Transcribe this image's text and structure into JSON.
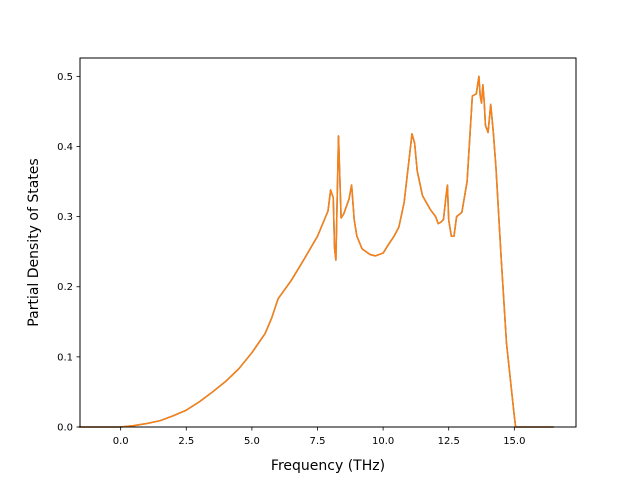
{
  "chart_data": {
    "type": "line",
    "title": "",
    "xlabel": "Frequency (THz)",
    "ylabel": "Partial Density of States",
    "xlim": [
      -1.55,
      17.35
    ],
    "ylim": [
      0.0,
      0.5262
    ],
    "x_ticks": [
      0.0,
      2.5,
      5.0,
      7.5,
      10.0,
      12.5,
      15.0
    ],
    "x_tick_labels": [
      "0.0",
      "2.5",
      "5.0",
      "7.5",
      "10.0",
      "12.5",
      "15.0"
    ],
    "y_ticks": [
      0.0,
      0.1,
      0.2,
      0.3,
      0.4,
      0.5
    ],
    "y_tick_labels": [
      "0.0",
      "0.1",
      "0.2",
      "0.3",
      "0.4",
      "0.5"
    ],
    "grid": false,
    "legend": "none",
    "series": [
      {
        "color": "#1f77b4",
        "x": [
          -1.6,
          0.0,
          0.5,
          1.0,
          1.5,
          2.0,
          2.5,
          3.0,
          3.5,
          4.0,
          4.5,
          5.0,
          5.5,
          5.75,
          6.0,
          6.5,
          7.0,
          7.5,
          7.9,
          8.0,
          8.1,
          8.15,
          8.2,
          8.3,
          8.4,
          8.5,
          8.7,
          8.8,
          8.9,
          9.0,
          9.2,
          9.5,
          9.7,
          10.0,
          10.2,
          10.4,
          10.6,
          10.8,
          11.0,
          11.1,
          11.2,
          11.3,
          11.5,
          11.8,
          12.0,
          12.1,
          12.2,
          12.3,
          12.4,
          12.45,
          12.5,
          12.6,
          12.7,
          12.8,
          13.0,
          13.2,
          13.4,
          13.55,
          13.65,
          13.7,
          13.75,
          13.8,
          13.85,
          13.9,
          14.0,
          14.1,
          14.2,
          14.3,
          14.5,
          14.7,
          15.0,
          15.05,
          15.1,
          16.5
        ],
        "y": [
          0.0,
          0.0,
          0.002,
          0.005,
          0.009,
          0.016,
          0.024,
          0.036,
          0.05,
          0.065,
          0.083,
          0.106,
          0.133,
          0.155,
          0.183,
          0.209,
          0.24,
          0.272,
          0.308,
          0.338,
          0.327,
          0.255,
          0.238,
          0.415,
          0.298,
          0.304,
          0.325,
          0.345,
          0.295,
          0.272,
          0.254,
          0.246,
          0.244,
          0.248,
          0.26,
          0.271,
          0.285,
          0.32,
          0.385,
          0.418,
          0.405,
          0.365,
          0.33,
          0.31,
          0.3,
          0.29,
          0.292,
          0.296,
          0.33,
          0.345,
          0.295,
          0.272,
          0.272,
          0.3,
          0.306,
          0.35,
          0.472,
          0.475,
          0.5,
          0.472,
          0.462,
          0.488,
          0.465,
          0.43,
          0.42,
          0.46,
          0.42,
          0.37,
          0.24,
          0.12,
          0.015,
          0.0,
          0.0,
          0.0
        ]
      },
      {
        "color": "#ff7f0e",
        "x": [
          -1.6,
          0.0,
          0.5,
          1.0,
          1.5,
          2.0,
          2.5,
          3.0,
          3.5,
          4.0,
          4.5,
          5.0,
          5.5,
          5.75,
          6.0,
          6.5,
          7.0,
          7.5,
          7.9,
          8.0,
          8.1,
          8.15,
          8.2,
          8.3,
          8.4,
          8.5,
          8.7,
          8.8,
          8.9,
          9.0,
          9.2,
          9.5,
          9.7,
          10.0,
          10.2,
          10.4,
          10.6,
          10.8,
          11.0,
          11.1,
          11.2,
          11.3,
          11.5,
          11.8,
          12.0,
          12.1,
          12.2,
          12.3,
          12.4,
          12.45,
          12.5,
          12.6,
          12.7,
          12.8,
          13.0,
          13.2,
          13.4,
          13.55,
          13.65,
          13.7,
          13.75,
          13.8,
          13.85,
          13.9,
          14.0,
          14.1,
          14.2,
          14.3,
          14.5,
          14.7,
          15.0,
          15.05,
          15.1,
          16.5
        ],
        "y": [
          0.0,
          0.0,
          0.002,
          0.005,
          0.009,
          0.016,
          0.024,
          0.036,
          0.05,
          0.065,
          0.083,
          0.106,
          0.133,
          0.155,
          0.183,
          0.209,
          0.24,
          0.272,
          0.308,
          0.338,
          0.327,
          0.255,
          0.238,
          0.415,
          0.298,
          0.304,
          0.325,
          0.345,
          0.295,
          0.272,
          0.254,
          0.246,
          0.244,
          0.248,
          0.26,
          0.271,
          0.285,
          0.32,
          0.385,
          0.418,
          0.405,
          0.365,
          0.33,
          0.31,
          0.3,
          0.29,
          0.292,
          0.296,
          0.33,
          0.345,
          0.295,
          0.272,
          0.272,
          0.3,
          0.306,
          0.35,
          0.472,
          0.475,
          0.5,
          0.472,
          0.462,
          0.488,
          0.465,
          0.43,
          0.42,
          0.46,
          0.42,
          0.37,
          0.24,
          0.12,
          0.015,
          0.0,
          0.0,
          0.0
        ]
      }
    ]
  }
}
